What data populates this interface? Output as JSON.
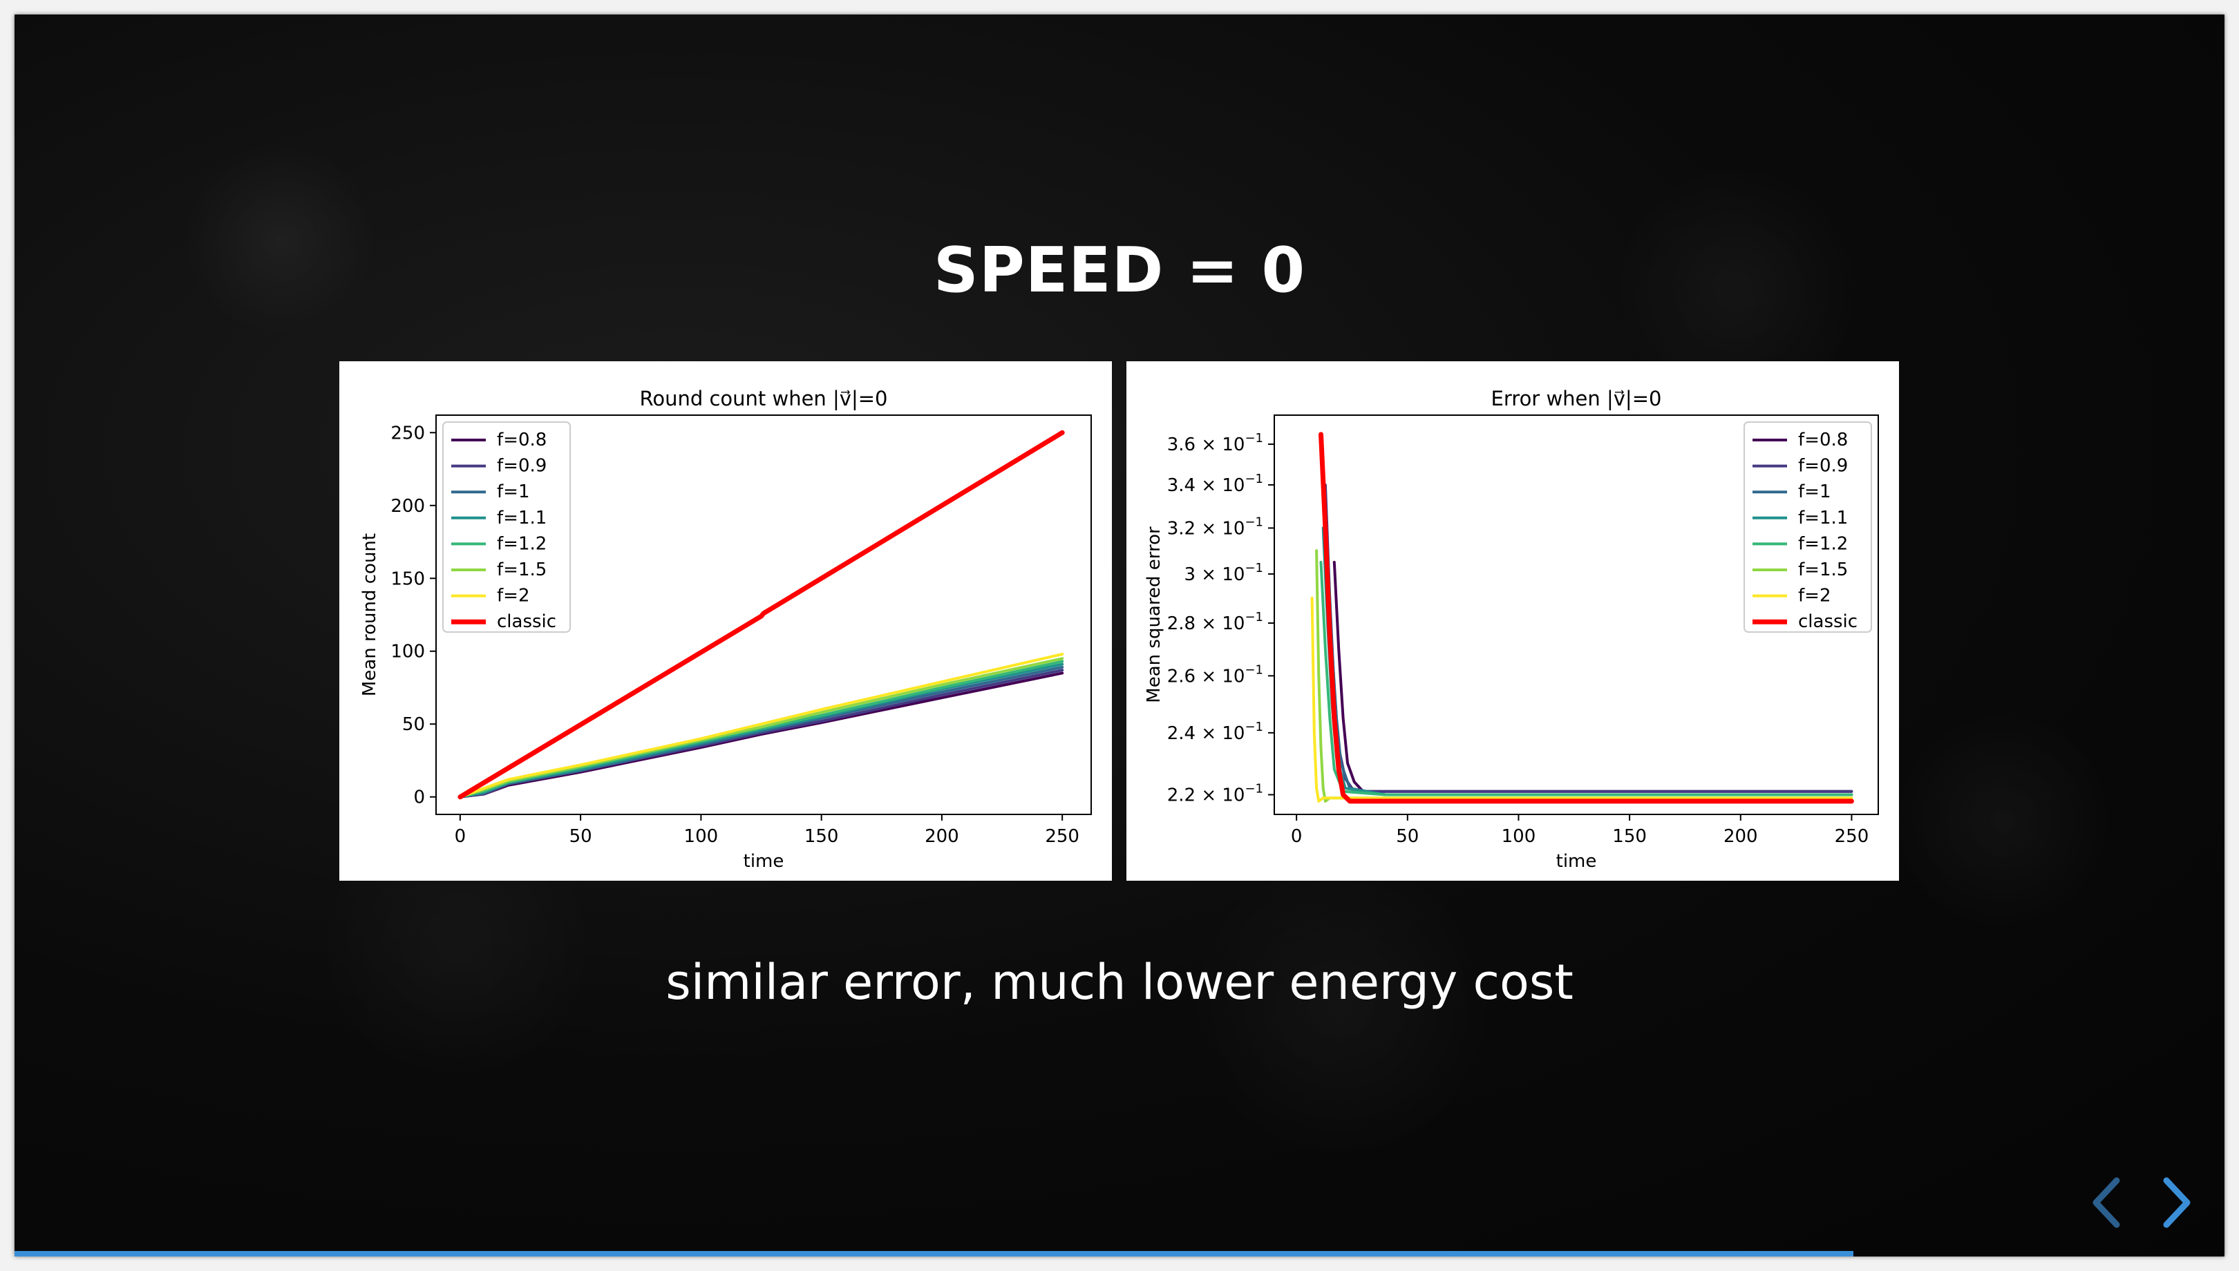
{
  "slide": {
    "title": "SPEED = 0",
    "subtitle": "similar error, much lower energy cost",
    "progress_fraction": 0.832
  },
  "series_colors": {
    "f=0.8": "#440154",
    "f=0.9": "#443a83",
    "f=1": "#31688e",
    "f=1.1": "#21918c",
    "f=1.2": "#35b779",
    "f=1.5": "#90d743",
    "f=2": "#fde725",
    "classic": "#ff0000"
  },
  "chart_data": [
    {
      "type": "line",
      "title": "Round count when |v⃗|=0",
      "xlabel": "time",
      "ylabel": "Mean round count",
      "xlim": [
        -10,
        262
      ],
      "ylim": [
        -12,
        262
      ],
      "xticks": [
        0,
        50,
        100,
        150,
        200,
        250
      ],
      "yticks": [
        0,
        50,
        100,
        150,
        200,
        250
      ],
      "legend_position": "top-left",
      "series": [
        {
          "name": "f=0.8",
          "x": [
            0,
            10,
            20,
            50,
            100,
            125,
            150,
            200,
            250
          ],
          "y": [
            0,
            2,
            8,
            17,
            34,
            43,
            51,
            68,
            85
          ]
        },
        {
          "name": "f=0.9",
          "x": [
            0,
            10,
            20,
            50,
            100,
            125,
            150,
            200,
            250
          ],
          "y": [
            0,
            2,
            9,
            18,
            35,
            44,
            52,
            70,
            87
          ]
        },
        {
          "name": "f=1",
          "x": [
            0,
            10,
            20,
            50,
            100,
            125,
            150,
            200,
            250
          ],
          "y": [
            0,
            3,
            9,
            18,
            36,
            45,
            54,
            72,
            89
          ]
        },
        {
          "name": "f=1.1",
          "x": [
            0,
            10,
            20,
            50,
            100,
            125,
            150,
            200,
            250
          ],
          "y": [
            0,
            3,
            10,
            19,
            37,
            46,
            55,
            74,
            91
          ]
        },
        {
          "name": "f=1.2",
          "x": [
            0,
            10,
            20,
            50,
            100,
            125,
            150,
            200,
            250
          ],
          "y": [
            0,
            4,
            10,
            20,
            38,
            47,
            56,
            75,
            93
          ]
        },
        {
          "name": "f=1.5",
          "x": [
            0,
            10,
            20,
            50,
            100,
            125,
            150,
            200,
            250
          ],
          "y": [
            0,
            5,
            11,
            21,
            39,
            48,
            58,
            77,
            95
          ]
        },
        {
          "name": "f=2",
          "x": [
            0,
            10,
            20,
            50,
            100,
            125,
            150,
            200,
            250
          ],
          "y": [
            0,
            6,
            12,
            22,
            40,
            50,
            60,
            79,
            98
          ]
        },
        {
          "name": "classic",
          "x": [
            0,
            125,
            126,
            250
          ],
          "y": [
            0,
            124,
            126,
            250
          ]
        }
      ]
    },
    {
      "type": "line",
      "title": "Error when |v⃗|=0",
      "xlabel": "time",
      "ylabel": "Mean squared error",
      "y_scale": "log",
      "xlim": [
        -10,
        262
      ],
      "ylim": [
        0.214,
        0.375
      ],
      "xticks": [
        0,
        50,
        100,
        150,
        200,
        250
      ],
      "yticks": [
        0.22,
        0.24,
        0.26,
        0.28,
        0.3,
        0.32,
        0.34,
        0.36
      ],
      "ytick_labels": [
        {
          "mant": "2.2",
          "exp": "−1"
        },
        {
          "mant": "2.4",
          "exp": "−1"
        },
        {
          "mant": "2.6",
          "exp": "−1"
        },
        {
          "mant": "2.8",
          "exp": "−1"
        },
        {
          "mant": "3",
          "exp": "−1"
        },
        {
          "mant": "3.2",
          "exp": "−1"
        },
        {
          "mant": "3.4",
          "exp": "−1"
        },
        {
          "mant": "3.6",
          "exp": "−1"
        }
      ],
      "legend_position": "top-right",
      "series": [
        {
          "name": "f=0.8",
          "x": [
            17,
            19,
            21,
            23,
            26,
            30,
            40,
            60,
            100,
            150,
            200,
            250
          ],
          "y": [
            0.305,
            0.27,
            0.245,
            0.23,
            0.224,
            0.221,
            0.221,
            0.221,
            0.221,
            0.221,
            0.221,
            0.221
          ]
        },
        {
          "name": "f=0.9",
          "x": [
            13,
            15,
            17,
            19,
            22,
            26,
            40,
            60,
            100,
            150,
            200,
            250
          ],
          "y": [
            0.34,
            0.29,
            0.255,
            0.235,
            0.225,
            0.221,
            0.221,
            0.221,
            0.221,
            0.221,
            0.221,
            0.221
          ]
        },
        {
          "name": "f=1",
          "x": [
            14,
            16,
            18,
            20,
            24,
            40,
            60,
            100,
            150,
            200,
            250
          ],
          "y": [
            0.31,
            0.27,
            0.245,
            0.23,
            0.222,
            0.22,
            0.22,
            0.22,
            0.22,
            0.22,
            0.22
          ]
        },
        {
          "name": "f=1.1",
          "x": [
            12,
            14,
            16,
            18,
            22,
            40,
            60,
            100,
            150,
            200,
            250
          ],
          "y": [
            0.32,
            0.28,
            0.25,
            0.232,
            0.222,
            0.22,
            0.22,
            0.22,
            0.22,
            0.22,
            0.22
          ]
        },
        {
          "name": "f=1.2",
          "x": [
            11,
            13,
            15,
            17,
            21,
            40,
            60,
            100,
            150,
            200,
            250
          ],
          "y": [
            0.305,
            0.27,
            0.245,
            0.228,
            0.221,
            0.22,
            0.22,
            0.22,
            0.22,
            0.22,
            0.22
          ]
        },
        {
          "name": "f=1.5",
          "x": [
            9,
            10,
            11,
            12,
            13,
            15,
            20,
            40,
            100,
            150,
            200,
            250
          ],
          "y": [
            0.31,
            0.26,
            0.235,
            0.222,
            0.218,
            0.219,
            0.219,
            0.219,
            0.219,
            0.219,
            0.219,
            0.219
          ]
        },
        {
          "name": "f=2",
          "x": [
            7,
            8,
            9,
            10,
            12,
            20,
            40,
            100,
            150,
            200,
            250
          ],
          "y": [
            0.29,
            0.24,
            0.222,
            0.218,
            0.219,
            0.219,
            0.219,
            0.219,
            0.219,
            0.219,
            0.219
          ]
        },
        {
          "name": "classic",
          "x": [
            11,
            13,
            15,
            17,
            19,
            21,
            24,
            30,
            60,
            100,
            150,
            200,
            250
          ],
          "y": [
            0.365,
            0.32,
            0.275,
            0.245,
            0.228,
            0.22,
            0.218,
            0.218,
            0.218,
            0.218,
            0.218,
            0.218,
            0.218
          ]
        }
      ]
    }
  ]
}
